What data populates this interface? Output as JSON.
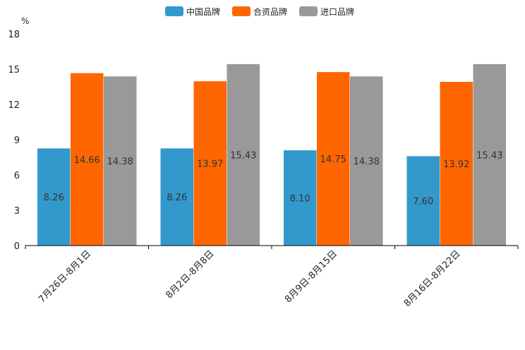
{
  "chart_data": {
    "type": "bar",
    "unit_label": "%",
    "categories": [
      "7月26日-8月1日",
      "8月2日-8月8日",
      "8月9日-8月15日",
      "8月16日-8月22日"
    ],
    "series": [
      {
        "name": "中国品牌",
        "color": "#3399cc",
        "values": [
          8.26,
          8.26,
          8.1,
          7.6
        ],
        "labels": [
          "8.26",
          "8.26",
          "8.10",
          "7.60"
        ]
      },
      {
        "name": "合资品牌",
        "color": "#ff6600",
        "values": [
          14.66,
          13.97,
          14.75,
          13.92
        ],
        "labels": [
          "14.66",
          "13.97",
          "14.75",
          "13.92"
        ]
      },
      {
        "name": "进口品牌",
        "color": "#999999",
        "values": [
          14.38,
          15.43,
          14.38,
          15.43
        ],
        "labels": [
          "14.38",
          "15.43",
          "14.38",
          "15.43"
        ]
      }
    ],
    "yticks": [
      "0",
      "3",
      "6",
      "9",
      "12",
      "15",
      "18"
    ],
    "ylim": [
      0,
      18
    ],
    "legend_position": "top-center"
  }
}
